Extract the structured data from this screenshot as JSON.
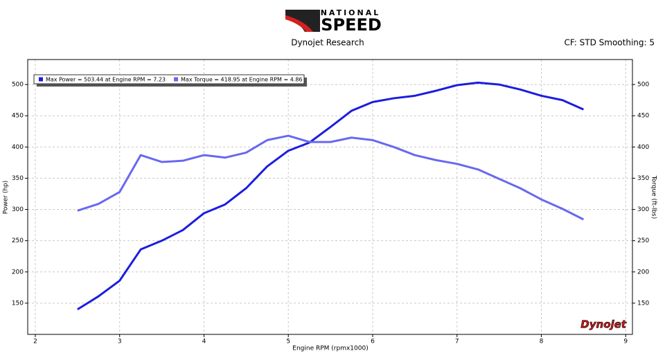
{
  "header": {
    "brand_top": "NATIONAL",
    "brand_main": "SPEED"
  },
  "chart_data": {
    "type": "line",
    "subtitle": "Dynojet Research",
    "info": "CF: STD Smoothing: 5",
    "x_label": "Engine RPM (rpmx1000)",
    "y_label": "Power (hp)",
    "y2_label": "Torque (ft-lbs)",
    "watermark": "Dynojet",
    "x": [
      2.5,
      2.75,
      3,
      3.25,
      3.5,
      3.75,
      4,
      4.25,
      4.5,
      4.75,
      5,
      5.25,
      5.5,
      5.75,
      6,
      6.25,
      6.5,
      6.75,
      7,
      7.25,
      7.5,
      7.75,
      8,
      8.25,
      8.5
    ],
    "series": [
      {
        "name": "Max Power = 503.44 at Engine RPM = 7.23",
        "color": "#1c1ce0",
        "values": [
          140,
          161,
          186,
          236,
          250,
          267,
          294,
          308,
          334,
          369,
          394,
          407,
          432,
          458,
          472,
          478,
          482,
          490,
          499,
          503,
          500,
          492,
          482,
          475,
          460
        ]
      },
      {
        "name": "Max Torque = 418.95 at Engine RPM = 4.86",
        "color": "#6868f0",
        "axis": "y2",
        "values": [
          298,
          309,
          328,
          387,
          376,
          378,
          387,
          383,
          391,
          411,
          418,
          408,
          408,
          415,
          411,
          400,
          387,
          379,
          373,
          364,
          349,
          334,
          316,
          301,
          284
        ]
      }
    ],
    "xlim": [
      1.91,
      9.08
    ],
    "xticks": [
      2,
      3,
      4,
      5,
      6,
      7,
      8,
      9
    ],
    "ylim": [
      100,
      540
    ],
    "yticks": [
      150,
      200,
      250,
      300,
      350,
      400,
      450,
      500
    ],
    "y2lim": [
      100,
      540
    ],
    "y2ticks": [
      150,
      200,
      250,
      300,
      350,
      400,
      450,
      500
    ],
    "grid": true
  }
}
